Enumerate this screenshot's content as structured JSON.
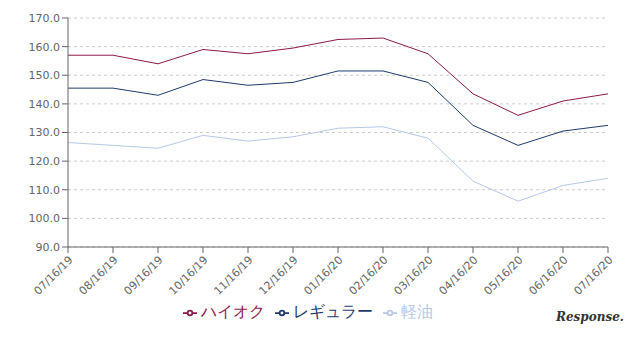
{
  "chart_data": {
    "type": "line",
    "categories": [
      "07/16/19",
      "08/16/19",
      "09/16/19",
      "10/16/19",
      "11/16/19",
      "12/16/19",
      "01/16/20",
      "02/16/20",
      "03/16/20",
      "04/16/20",
      "05/16/20",
      "06/16/20",
      "07/16/20"
    ],
    "series": [
      {
        "name": "レギュラー",
        "color": "#1F3A6E",
        "values": [
          145.5,
          145.5,
          143.0,
          148.5,
          146.5,
          147.5,
          151.5,
          151.5,
          147.5,
          132.5,
          125.5,
          130.5,
          132.5
        ]
      },
      {
        "name": "ハイオク",
        "color": "#8B1A4A",
        "values": [
          157.0,
          157.0,
          154.0,
          159.0,
          157.5,
          159.5,
          162.5,
          163.0,
          157.5,
          143.5,
          136.0,
          141.0,
          143.5
        ]
      },
      {
        "name": "軽油",
        "color": "#B8C8E8",
        "values": [
          126.5,
          125.5,
          124.5,
          129.0,
          127.0,
          128.5,
          131.5,
          132.0,
          128.0,
          113.0,
          106.0,
          111.5,
          114.0
        ]
      }
    ],
    "ylim": [
      90.0,
      170.0
    ],
    "yticks": [
      {
        "value": 90.0,
        "label": "90.0"
      },
      {
        "value": 100.0,
        "label": "100.0"
      },
      {
        "value": 110.0,
        "label": "110.0"
      },
      {
        "value": 120.0,
        "label": "120.0"
      },
      {
        "value": 130.0,
        "label": "130.0"
      },
      {
        "value": 140.0,
        "label": "140.0"
      },
      {
        "value": 150.0,
        "label": "150.0"
      },
      {
        "value": 160.0,
        "label": "160.0"
      },
      {
        "value": 170.0,
        "label": "170.0"
      }
    ],
    "grid": true,
    "legend": "bottom",
    "annotations": [
      "Response."
    ]
  }
}
